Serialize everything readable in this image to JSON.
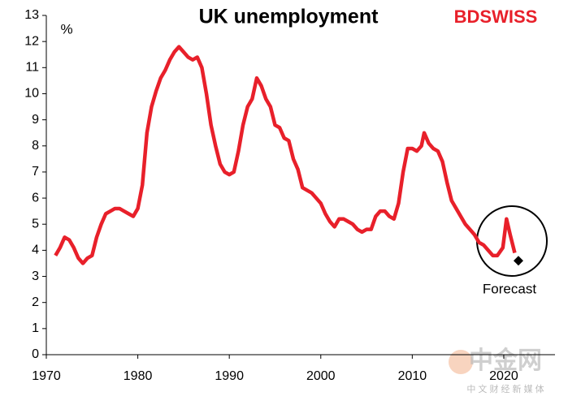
{
  "chart_data": {
    "type": "line",
    "title": "UK unemployment",
    "y_unit": "%",
    "x": [
      1971.0,
      1971.5,
      1972.0,
      1972.5,
      1973.0,
      1973.5,
      1974.0,
      1974.5,
      1975.0,
      1975.5,
      1976.0,
      1976.5,
      1977.0,
      1977.5,
      1978.0,
      1978.5,
      1979.0,
      1979.5,
      1980.0,
      1980.5,
      1981.0,
      1981.5,
      1982.0,
      1982.5,
      1983.0,
      1983.5,
      1984.0,
      1984.5,
      1985.0,
      1985.5,
      1986.0,
      1986.5,
      1987.0,
      1987.5,
      1988.0,
      1988.5,
      1989.0,
      1989.5,
      1990.0,
      1990.5,
      1991.0,
      1991.5,
      1992.0,
      1992.5,
      1993.0,
      1993.5,
      1994.0,
      1994.5,
      1995.0,
      1995.5,
      1996.0,
      1996.5,
      1997.0,
      1997.5,
      1998.0,
      1998.5,
      1999.0,
      1999.5,
      2000.0,
      2000.5,
      2001.0,
      2001.5,
      2002.0,
      2002.5,
      2003.0,
      2003.5,
      2004.0,
      2004.5,
      2005.0,
      2005.5,
      2006.0,
      2006.5,
      2007.0,
      2007.5,
      2008.0,
      2008.5,
      2009.0,
      2009.5,
      2010.0,
      2010.5,
      2011.0,
      2011.3,
      2011.8,
      2012.3,
      2012.8,
      2013.3,
      2013.8,
      2014.3,
      2014.8,
      2015.3,
      2015.8,
      2016.3,
      2016.8,
      2017.3,
      2017.8,
      2018.3,
      2018.8,
      2019.3,
      2019.9,
      2020.3,
      2020.7,
      2021.2
    ],
    "series": [
      {
        "color": "#e8202a",
        "values": [
          3.8,
          4.1,
          4.5,
          4.4,
          4.1,
          3.7,
          3.5,
          3.7,
          3.8,
          4.5,
          5.0,
          5.4,
          5.5,
          5.6,
          5.6,
          5.5,
          5.4,
          5.3,
          5.6,
          6.5,
          8.5,
          9.5,
          10.1,
          10.6,
          10.9,
          11.3,
          11.6,
          11.8,
          11.6,
          11.4,
          11.3,
          11.4,
          11.0,
          10.0,
          8.8,
          8.0,
          7.3,
          7.0,
          6.9,
          7.0,
          7.8,
          8.8,
          9.5,
          9.8,
          10.6,
          10.3,
          9.8,
          9.5,
          8.8,
          8.7,
          8.3,
          8.2,
          7.5,
          7.1,
          6.4,
          6.3,
          6.2,
          6.0,
          5.8,
          5.4,
          5.1,
          4.9,
          5.2,
          5.2,
          5.1,
          5.0,
          4.8,
          4.7,
          4.8,
          4.8,
          5.3,
          5.5,
          5.5,
          5.3,
          5.2,
          5.8,
          7.0,
          7.9,
          7.9,
          7.8,
          8.0,
          8.5,
          8.1,
          7.9,
          7.8,
          7.4,
          6.6,
          5.9,
          5.6,
          5.3,
          5.0,
          4.8,
          4.6,
          4.3,
          4.2,
          4.0,
          3.8,
          3.8,
          4.1,
          5.2,
          4.6,
          3.9
        ]
      }
    ],
    "forecast": {
      "x": 2021.6,
      "value": 3.6,
      "label": "Forecast",
      "color": "#000000"
    },
    "xlim": [
      1970,
      2025.6
    ],
    "xticks": [
      1970,
      1980,
      1990,
      2000,
      2010,
      2020
    ],
    "ylim": [
      0,
      13
    ],
    "yticks": [
      0,
      1,
      2,
      3,
      4,
      5,
      6,
      7,
      8,
      9,
      10,
      11,
      12,
      13
    ],
    "grid": false
  },
  "logo": "BDSWISS",
  "watermark": {
    "brand": "中金网",
    "tagline": "中 文 财 经 新 媒 体"
  }
}
